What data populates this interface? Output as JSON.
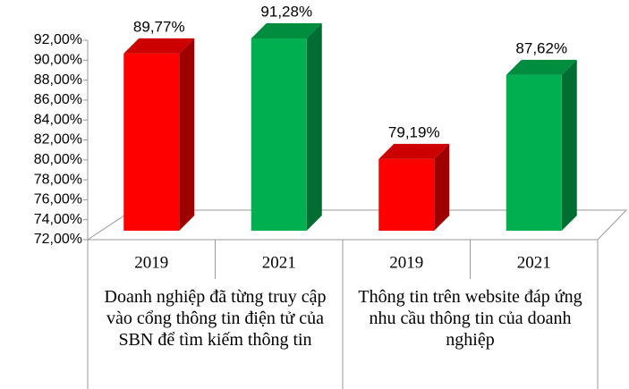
{
  "chart_data": {
    "type": "bar3d",
    "categories": [
      "2019",
      "2021",
      "2019",
      "2021"
    ],
    "groups": [
      {
        "label": "Doanh nghiệp đã từng truy cập vào cổng thông tin điện tử của SBN để tìm kiếm thông tin",
        "span": 2
      },
      {
        "label": "Thông tin trên website đáp ứng nhu cầu thông tin của doanh nghiệp",
        "span": 2
      }
    ],
    "values": [
      89.77,
      91.28,
      79.19,
      87.62
    ],
    "value_labels": [
      "89,77%",
      "91,28%",
      "79,19%",
      "87,62%"
    ],
    "colors": [
      "#ff0000",
      "#00b050",
      "#ff0000",
      "#00b050"
    ],
    "ylim": [
      72,
      92
    ],
    "yticks": [
      {
        "value": 72,
        "label": "72,00%"
      },
      {
        "value": 74,
        "label": "74,00%"
      },
      {
        "value": 76,
        "label": "76,00%"
      },
      {
        "value": 78,
        "label": "78,00%"
      },
      {
        "value": 80,
        "label": "80,00%"
      },
      {
        "value": 82,
        "label": "82,00%"
      },
      {
        "value": 84,
        "label": "84,00%"
      },
      {
        "value": 86,
        "label": "86,00%"
      },
      {
        "value": 88,
        "label": "88,00%"
      },
      {
        "value": 90,
        "label": "90,00%"
      },
      {
        "value": 92,
        "label": "92,00%"
      }
    ]
  }
}
